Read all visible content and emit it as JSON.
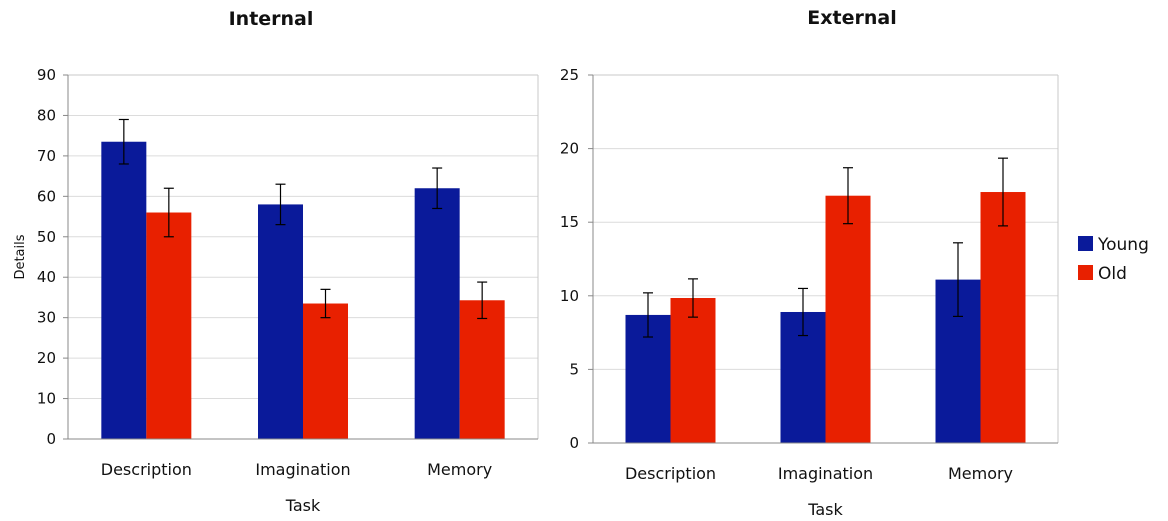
{
  "legend": [
    {
      "name": "Young",
      "color": "#0a1a9a"
    },
    {
      "name": "Old",
      "color": "#e82000"
    }
  ],
  "chart_data": [
    {
      "type": "bar",
      "title": "Internal",
      "categories": [
        "Description",
        "Imagination",
        "Memory"
      ],
      "xlabel": "Task",
      "ylabel": "Details",
      "ylim": [
        0,
        90
      ],
      "yticks": [
        0,
        10,
        20,
        30,
        40,
        50,
        60,
        70,
        80,
        90
      ],
      "grid": true,
      "legend": "none",
      "series": [
        {
          "name": "Young",
          "color": "#0a1a9a",
          "values": [
            73.5,
            58,
            62
          ],
          "errors": [
            5.5,
            5,
            5
          ]
        },
        {
          "name": "Old",
          "color": "#e82000",
          "values": [
            56,
            33.5,
            34.3
          ],
          "errors": [
            6,
            3.5,
            4.5
          ]
        }
      ]
    },
    {
      "type": "bar",
      "title": "External",
      "categories": [
        "Description",
        "Imagination",
        "Memory"
      ],
      "xlabel": "Task",
      "ylabel": "",
      "ylim": [
        0,
        25
      ],
      "yticks": [
        0,
        5,
        10,
        15,
        20,
        25
      ],
      "grid": true,
      "legend": "right",
      "series": [
        {
          "name": "Young",
          "color": "#0a1a9a",
          "values": [
            8.7,
            8.9,
            11.1
          ],
          "errors": [
            1.5,
            1.6,
            2.5
          ]
        },
        {
          "name": "Old",
          "color": "#e82000",
          "values": [
            9.85,
            16.8,
            17.05
          ],
          "errors": [
            1.3,
            1.9,
            2.3
          ]
        }
      ]
    }
  ]
}
